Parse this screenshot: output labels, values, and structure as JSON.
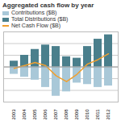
{
  "chart_data": {
    "type": "bar",
    "title": "Aggregated cash flow by year",
    "categories": [
      "2003",
      "2004",
      "2005",
      "2006",
      "2007",
      "2008",
      "2009",
      "2010",
      "2011",
      "2012"
    ],
    "series": [
      {
        "name": "Contributions ($B)",
        "type": "bar",
        "color": "#a9c8d8",
        "values": [
          -25,
          -35,
          -45,
          -70,
          -100,
          -85,
          -55,
          -60,
          -70,
          -65
        ]
      },
      {
        "name": "Total Distributions ($B)",
        "type": "bar",
        "color": "#4a7f8c",
        "values": [
          20,
          40,
          60,
          75,
          70,
          35,
          30,
          70,
          95,
          110
        ]
      },
      {
        "name": "Net Cash Flow ($B)",
        "type": "line",
        "color": "#f0a030",
        "values": [
          -5,
          5,
          15,
          5,
          -30,
          -50,
          -25,
          10,
          25,
          45
        ]
      }
    ],
    "ylim": [
      -120,
      120
    ],
    "yticks": [
      -120,
      -80,
      -40,
      0,
      40,
      80,
      120
    ],
    "grid": true,
    "legend": "top",
    "tick_labels": "x"
  }
}
